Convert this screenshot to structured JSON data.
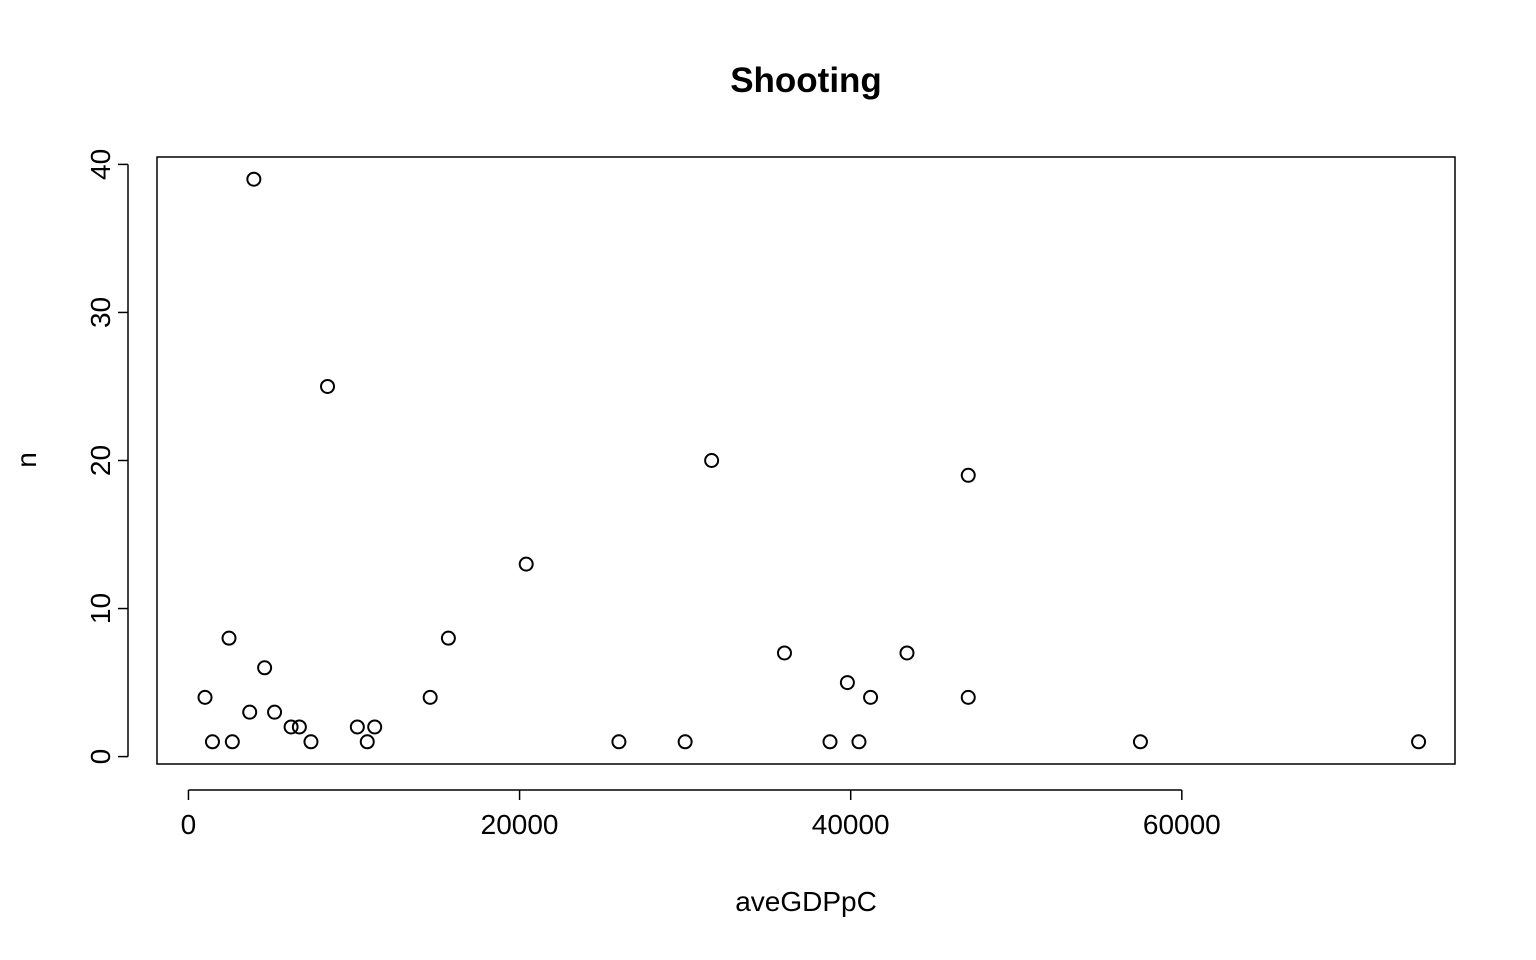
{
  "chart_data": {
    "type": "scatter",
    "title": "Shooting",
    "xlabel": "aveGDPpC",
    "ylabel": "n",
    "xlim": [
      -1900,
      76500
    ],
    "ylim": [
      -0.5,
      40.5
    ],
    "x_ticks": [
      0,
      20000,
      40000,
      60000
    ],
    "x_tick_labels": [
      "0",
      "20000",
      "40000",
      "60000"
    ],
    "y_ticks": [
      0,
      10,
      20,
      30,
      40
    ],
    "y_tick_labels": [
      "0",
      "10",
      "20",
      "30",
      "40"
    ],
    "grid": false,
    "legend": "none",
    "marker": "open-circle",
    "points": [
      {
        "x": 1000,
        "y": 4
      },
      {
        "x": 1450,
        "y": 1
      },
      {
        "x": 2450,
        "y": 8
      },
      {
        "x": 2650,
        "y": 1
      },
      {
        "x": 3700,
        "y": 3
      },
      {
        "x": 3950,
        "y": 39
      },
      {
        "x": 4600,
        "y": 6
      },
      {
        "x": 5200,
        "y": 3
      },
      {
        "x": 6200,
        "y": 2
      },
      {
        "x": 6700,
        "y": 2
      },
      {
        "x": 7400,
        "y": 1
      },
      {
        "x": 8400,
        "y": 25
      },
      {
        "x": 10200,
        "y": 2
      },
      {
        "x": 10800,
        "y": 1
      },
      {
        "x": 11250,
        "y": 2
      },
      {
        "x": 14600,
        "y": 4
      },
      {
        "x": 15700,
        "y": 8
      },
      {
        "x": 20400,
        "y": 13
      },
      {
        "x": 26000,
        "y": 1
      },
      {
        "x": 30000,
        "y": 1
      },
      {
        "x": 31600,
        "y": 20
      },
      {
        "x": 36000,
        "y": 7
      },
      {
        "x": 38750,
        "y": 1
      },
      {
        "x": 39800,
        "y": 5
      },
      {
        "x": 40500,
        "y": 1
      },
      {
        "x": 41200,
        "y": 4
      },
      {
        "x": 43400,
        "y": 7
      },
      {
        "x": 47100,
        "y": 19
      },
      {
        "x": 47100,
        "y": 4
      },
      {
        "x": 57500,
        "y": 1
      },
      {
        "x": 74300,
        "y": 1
      }
    ]
  }
}
